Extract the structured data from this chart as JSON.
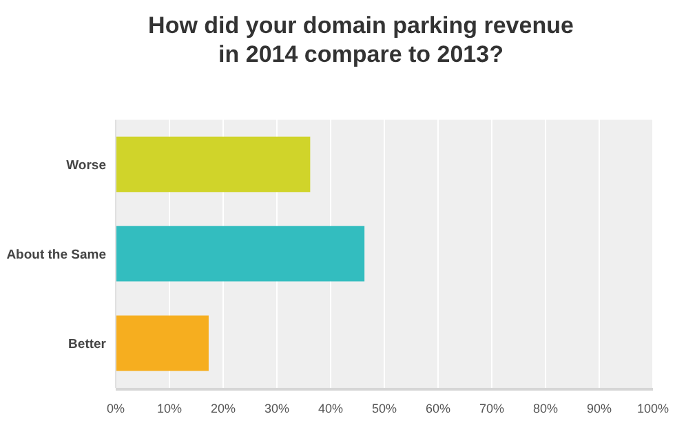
{
  "chart_data": {
    "type": "bar",
    "orientation": "horizontal",
    "title": "How did your domain parking revenue in 2014 compare to 2013?",
    "categories": [
      "Worse",
      "About the Same",
      "Better"
    ],
    "values": [
      36.2,
      46.3,
      17.3
    ],
    "colors": [
      "#d0d42a",
      "#33bdbf",
      "#f6ae1f"
    ],
    "xlim": [
      0,
      100
    ],
    "xticks": [
      {
        "value": 0,
        "label": "0%"
      },
      {
        "value": 10,
        "label": "10%"
      },
      {
        "value": 20,
        "label": "20%"
      },
      {
        "value": 30,
        "label": "30%"
      },
      {
        "value": 40,
        "label": "40%"
      },
      {
        "value": 50,
        "label": "50%"
      },
      {
        "value": 60,
        "label": "60%"
      },
      {
        "value": 70,
        "label": "70%"
      },
      {
        "value": 80,
        "label": "80%"
      },
      {
        "value": 90,
        "label": "90%"
      },
      {
        "value": 100,
        "label": "100%"
      }
    ],
    "grid": "x"
  }
}
